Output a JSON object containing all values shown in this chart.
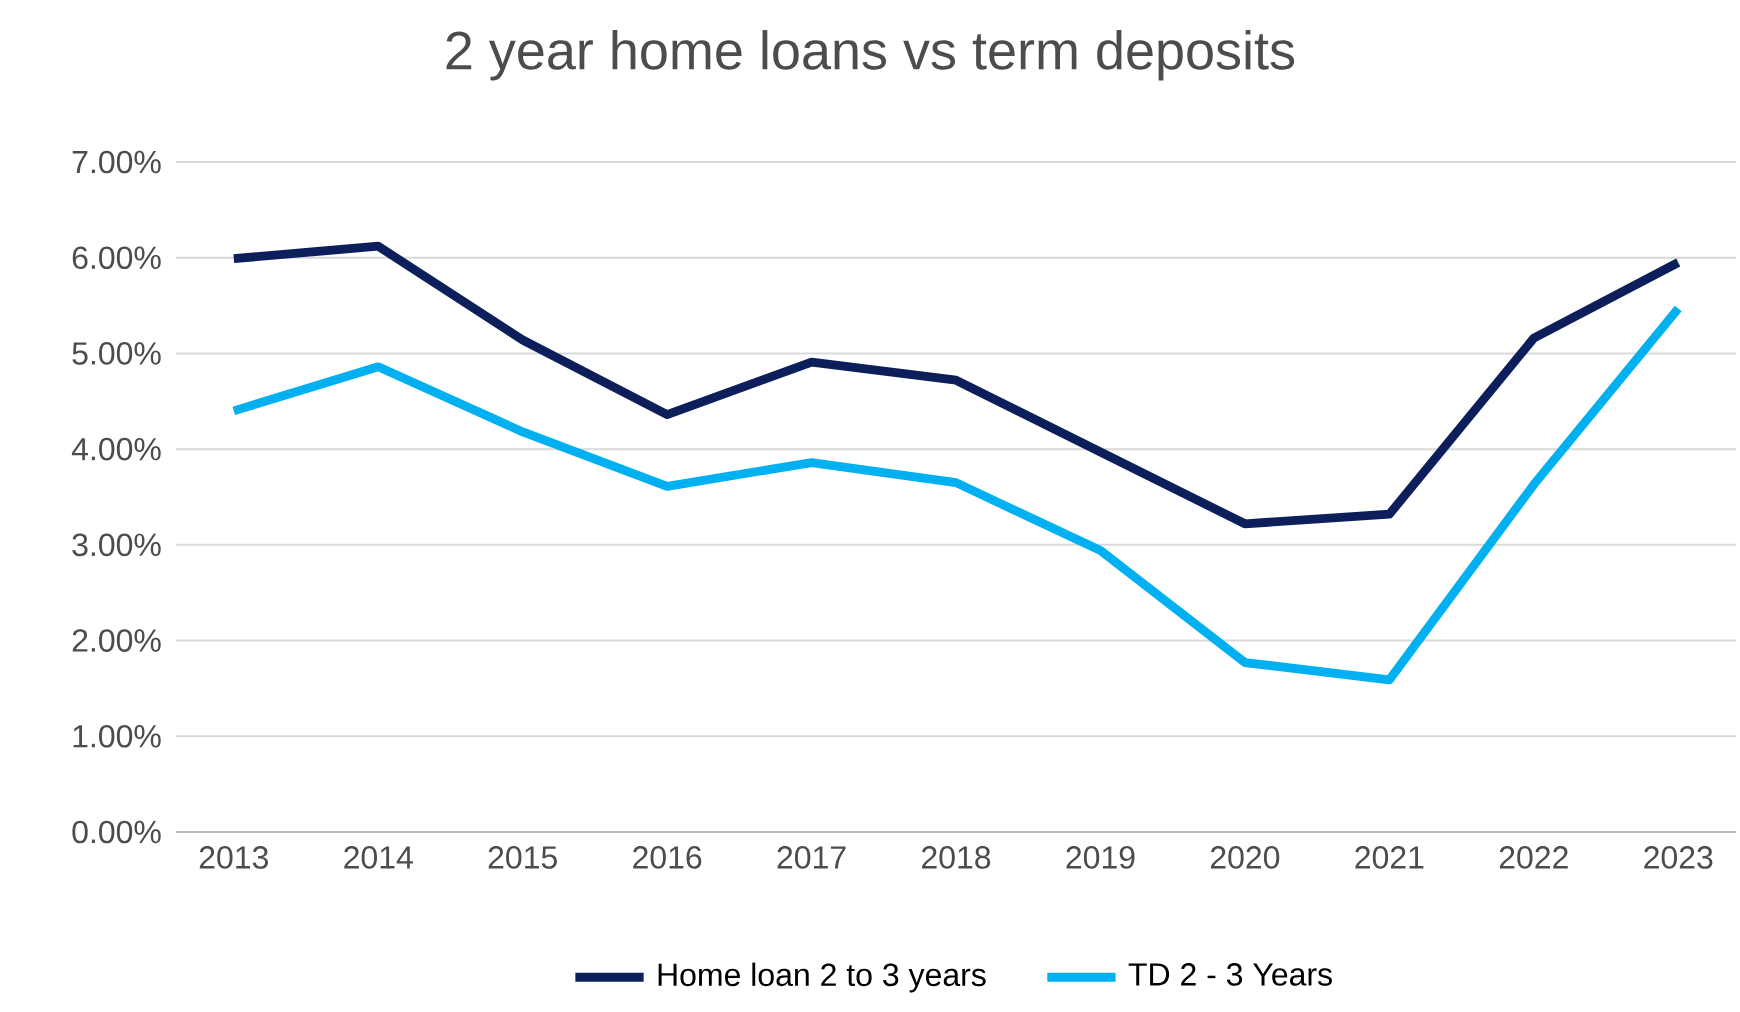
{
  "chart_data": {
    "type": "line",
    "title": "2 year home loans vs term deposits",
    "categories": [
      "2013",
      "2014",
      "2015",
      "2016",
      "2017",
      "2018",
      "2019",
      "2020",
      "2021",
      "2022",
      "2023"
    ],
    "series": [
      {
        "name": "Home loan 2 to 3 years",
        "color": "#0c1f5b",
        "values": [
          5.99,
          6.12,
          5.14,
          4.36,
          4.91,
          4.72,
          3.97,
          3.22,
          3.32,
          5.16,
          5.95
        ]
      },
      {
        "name": "TD 2 - 3 Years",
        "color": "#00b0f0",
        "values": [
          4.4,
          4.86,
          4.18,
          3.61,
          3.86,
          3.65,
          2.94,
          1.77,
          1.59,
          3.63,
          5.47
        ]
      }
    ],
    "ylim": [
      0,
      7
    ],
    "yticks": [
      {
        "value": 0,
        "label": "0.00%"
      },
      {
        "value": 1,
        "label": "1.00%"
      },
      {
        "value": 2,
        "label": "2.00%"
      },
      {
        "value": 3,
        "label": "3.00%"
      },
      {
        "value": 4,
        "label": "4.00%"
      },
      {
        "value": 5,
        "label": "5.00%"
      },
      {
        "value": 6,
        "label": "6.00%"
      },
      {
        "value": 7,
        "label": "7.00%"
      }
    ],
    "grid": "y",
    "legend": "bottom",
    "marker": "none",
    "line_style": "solid"
  }
}
